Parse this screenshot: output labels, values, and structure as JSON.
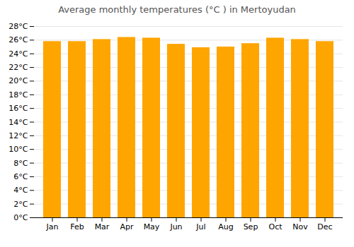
{
  "chart_data": {
    "type": "bar",
    "title": "Average monthly temperatures (°C ) in Mertoyudan",
    "categories": [
      "Jan",
      "Feb",
      "Mar",
      "Apr",
      "May",
      "Jun",
      "Jul",
      "Aug",
      "Sep",
      "Oct",
      "Nov",
      "Dec"
    ],
    "values": [
      25.8,
      25.8,
      26.1,
      26.4,
      26.3,
      25.4,
      24.9,
      25.0,
      25.5,
      26.3,
      26.1,
      25.8
    ],
    "color": "#FFA500",
    "ylim": [
      0,
      28
    ],
    "yticks": [
      {
        "value": 0,
        "label": "0°C"
      },
      {
        "value": 2,
        "label": "2°C"
      },
      {
        "value": 4,
        "label": "4°C"
      },
      {
        "value": 6,
        "label": "6°C"
      },
      {
        "value": 8,
        "label": "8°C"
      },
      {
        "value": 10,
        "label": "10°C"
      },
      {
        "value": 12,
        "label": "12°C"
      },
      {
        "value": 14,
        "label": "14°C"
      },
      {
        "value": 16,
        "label": "16°C"
      },
      {
        "value": 18,
        "label": "18°C"
      },
      {
        "value": 20,
        "label": "20°C"
      },
      {
        "value": 22,
        "label": "22°C"
      },
      {
        "value": 24,
        "label": "24°C"
      },
      {
        "value": 26,
        "label": "26°C"
      },
      {
        "value": 28,
        "label": "28°C"
      }
    ],
    "grid": true
  }
}
